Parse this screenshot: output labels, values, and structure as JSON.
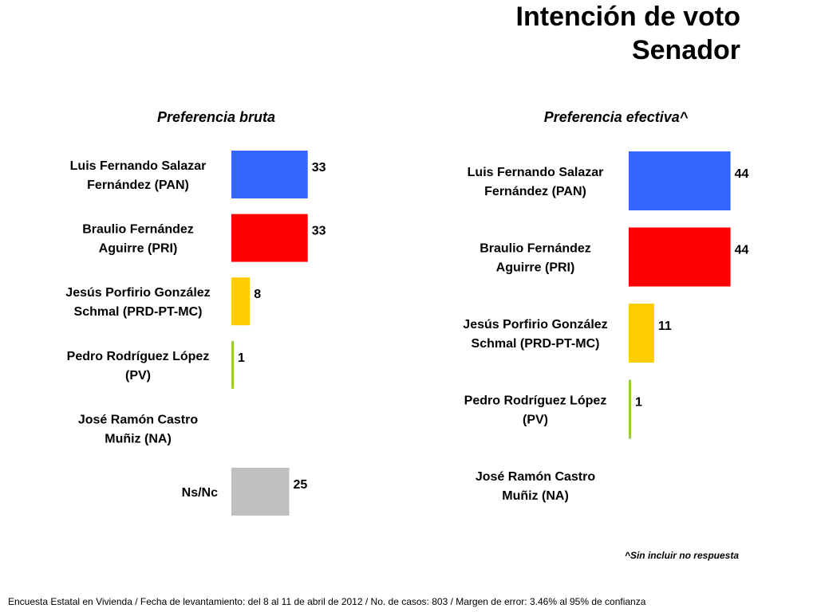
{
  "title": {
    "line1": "Intención de voto",
    "line2": "Senador"
  },
  "footnote": "^Sin incluir no respuesta",
  "source": "Encuesta Estatal en Vivienda / Fecha de levantamiento: del  8 al 11 de abril de 2012 / No. de casos: 803 / Margen de error: 3.46% al 95% de confianza",
  "chart_data": [
    {
      "type": "bar",
      "orientation": "horizontal",
      "title": "Preferencia bruta",
      "categories": [
        [
          "Luis Fernando Salazar",
          "Fernández (PAN)"
        ],
        [
          "Braulio Fernández",
          "Aguirre (PRI)"
        ],
        [
          "Jesús Porfirio González",
          "Schmal (PRD-PT-MC)"
        ],
        [
          "Pedro Rodríguez López",
          "(PV)"
        ],
        [
          "José Ramón Castro",
          "Muñiz (NA)"
        ],
        [
          "Ns/Nc"
        ]
      ],
      "values": [
        33,
        33,
        8,
        1,
        null,
        25
      ],
      "value_labels": [
        "33",
        "33",
        "8",
        "1",
        "",
        "25"
      ],
      "colors": [
        "#3366ff",
        "#ff0000",
        "#ffcc00",
        "#99cc33",
        "#ffffff",
        "#c0c0c0"
      ]
    },
    {
      "type": "bar",
      "orientation": "horizontal",
      "title": "Preferencia efectiva^",
      "categories": [
        [
          "Luis Fernando Salazar",
          "Fernández (PAN)"
        ],
        [
          "Braulio Fernández",
          "Aguirre (PRI)"
        ],
        [
          "Jesús Porfirio González",
          "Schmal (PRD-PT-MC)"
        ],
        [
          "Pedro Rodríguez López",
          "(PV)"
        ],
        [
          "José Ramón Castro",
          "Muñiz (NA)"
        ]
      ],
      "values": [
        44,
        44,
        11,
        1,
        null
      ],
      "value_labels": [
        "44",
        "44",
        "11",
        "1",
        ""
      ],
      "colors": [
        "#3366ff",
        "#ff0000",
        "#ffcc00",
        "#99cc33",
        "#ffffff"
      ]
    }
  ]
}
